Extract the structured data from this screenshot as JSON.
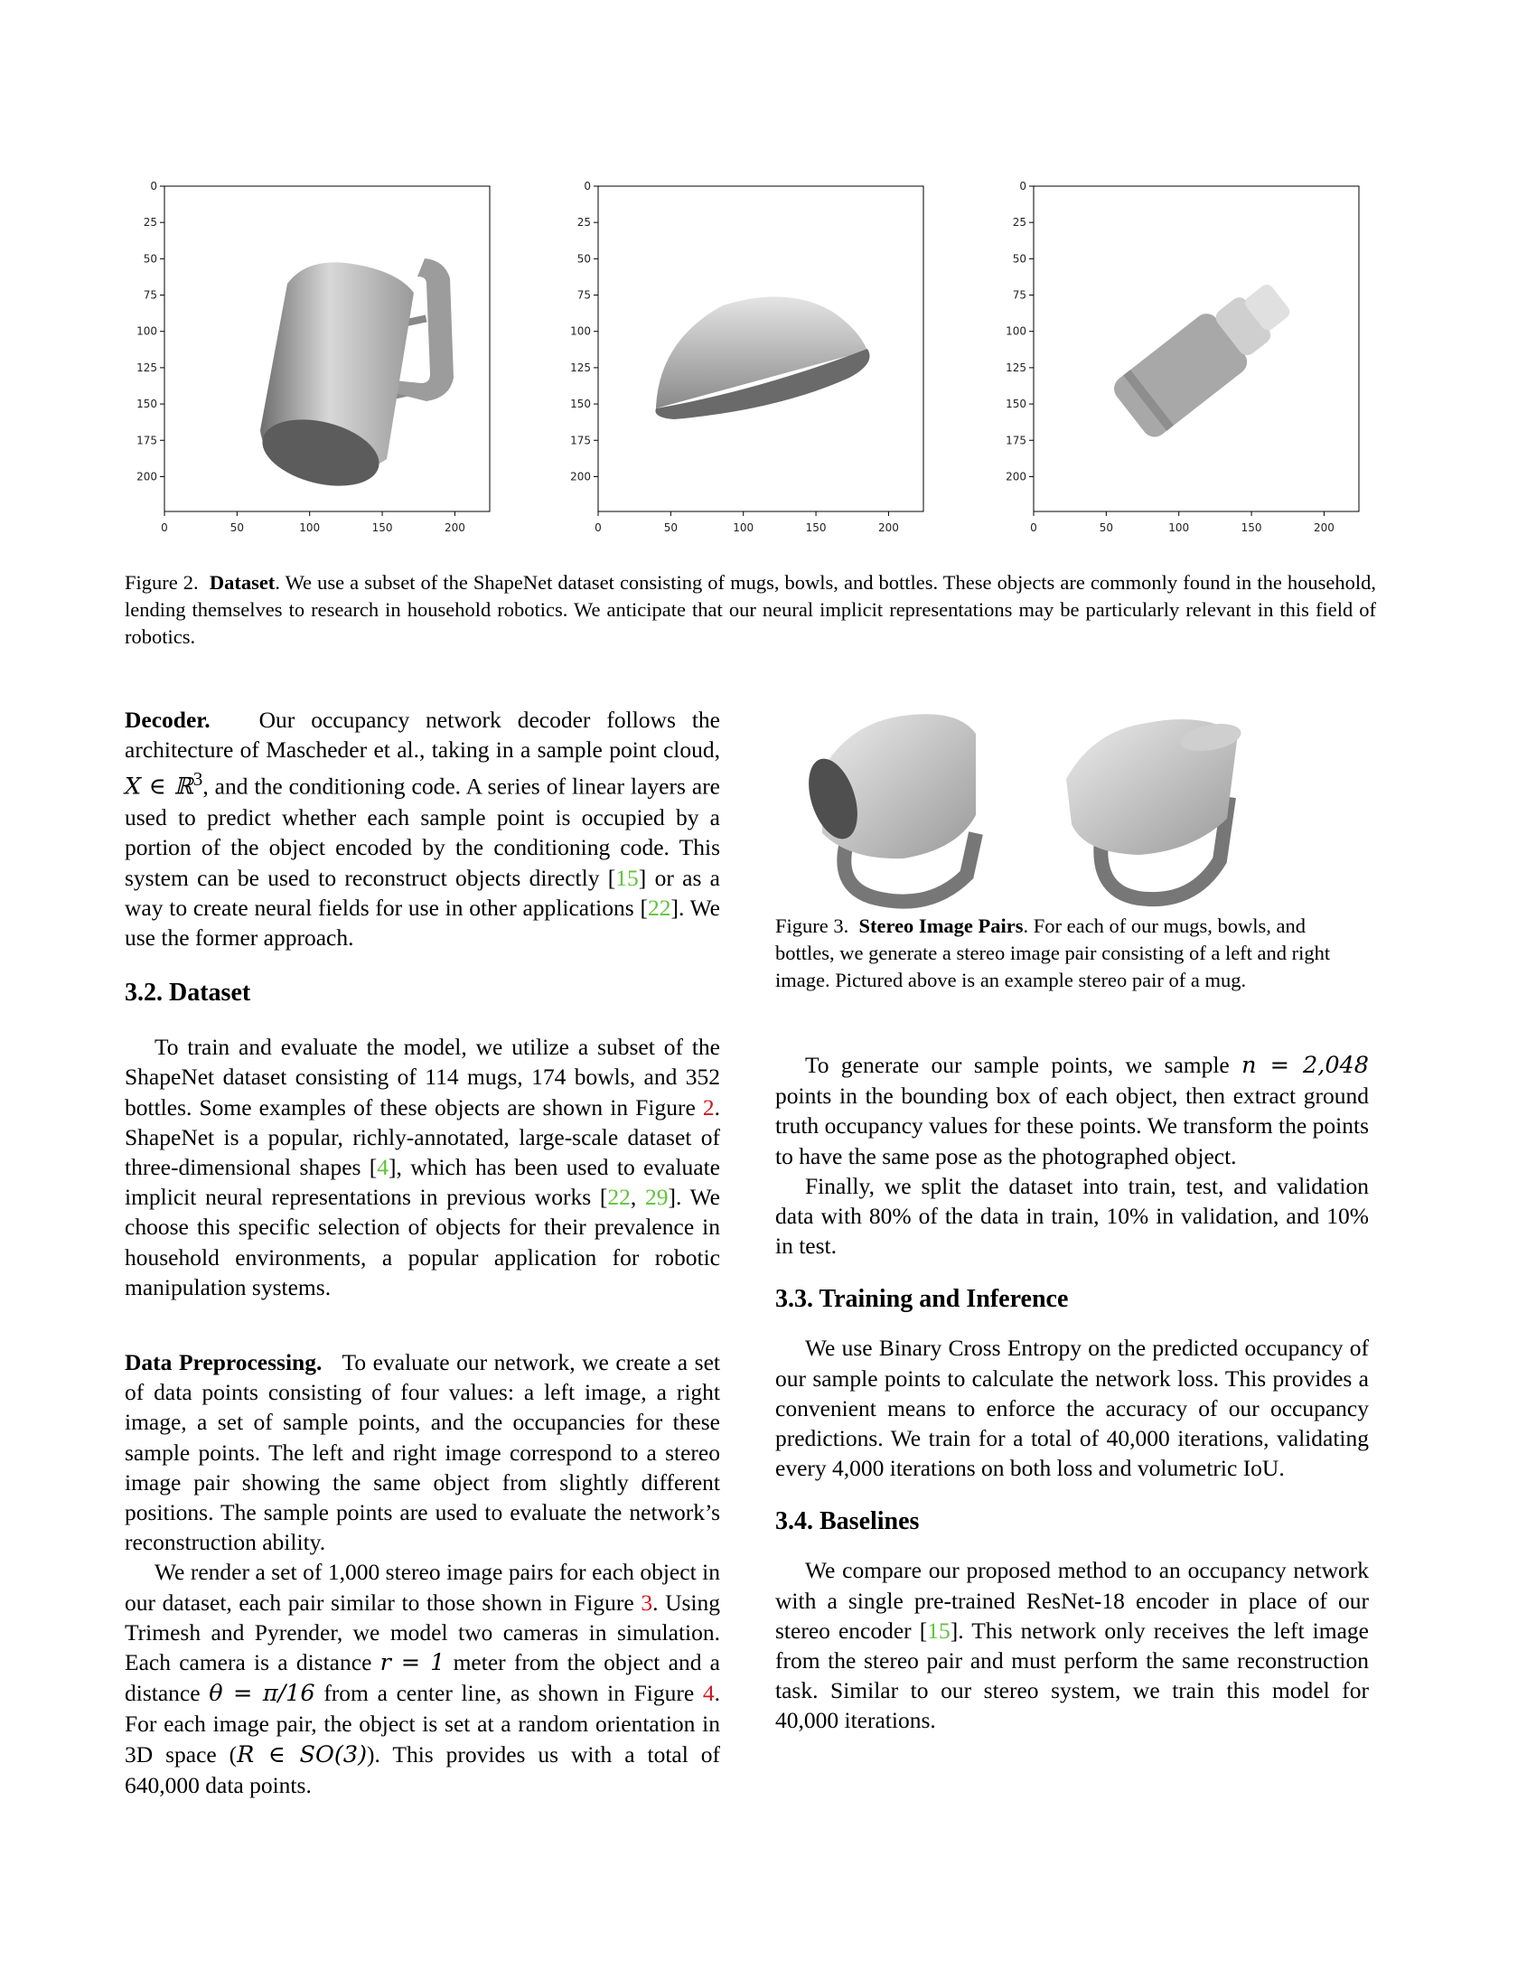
{
  "figure2": {
    "plots": [
      {
        "object": "mug",
        "y_ticks": [
          "0",
          "25",
          "50",
          "75",
          "100",
          "125",
          "150",
          "175",
          "200"
        ],
        "x_ticks": [
          "0",
          "50",
          "100",
          "150",
          "200"
        ]
      },
      {
        "object": "bowl",
        "y_ticks": [
          "0",
          "25",
          "50",
          "75",
          "100",
          "125",
          "150",
          "175",
          "200"
        ],
        "x_ticks": [
          "0",
          "50",
          "100",
          "150",
          "200"
        ]
      },
      {
        "object": "bottle",
        "y_ticks": [
          "0",
          "25",
          "50",
          "75",
          "100",
          "125",
          "150",
          "175",
          "200"
        ],
        "x_ticks": [
          "0",
          "50",
          "100",
          "150",
          "200"
        ]
      }
    ],
    "caption_label": "Figure 2.",
    "caption_bold": "Dataset",
    "caption_text": ". We use a subset of the ShapeNet dataset consisting of mugs, bowls, and bottles. These objects are commonly found in the household, lending themselves to research in household robotics. We anticipate that our neural implicit representations may be particularly relevant in this field of robotics."
  },
  "left": {
    "decoder": {
      "title": "Decoder.",
      "t1": "Our occupancy network decoder follows the architecture of Mascheder et al., taking in a sample point cloud,",
      "math1": "X ∈ ℝ",
      "sup": "3",
      "t2": ", and the conditioning code. A series of linear layers are used to predict whether each sample point is occupied by a portion of the object encoded by the conditioning code. This system can be used to reconstruct objects directly [",
      "c1": "15",
      "t3": "] or as a way to create neural fields for use in other applications [",
      "c2": "22",
      "t4": "]. We use the former approach."
    },
    "dataset": {
      "heading": "3.2. Dataset",
      "t1": "To train and evaluate the model, we utilize a subset of the ShapeNet dataset consisting of 114 mugs, 174 bowls, and 352 bottles. Some examples of these objects are shown in Figure ",
      "r1": "2",
      "t2": ". ShapeNet is a popular, richly-annotated, large-scale dataset of three-dimensional shapes [",
      "c1": "4",
      "t3": "], which has been used to evaluate implicit neural representations in previous works [",
      "c2": "22",
      "sep": ", ",
      "c3": "29",
      "t4": "]. We choose this specific selection of objects for their prevalence in household environments, a popular application for robotic manipulation systems."
    },
    "preproc": {
      "title": "Data Preprocessing.",
      "t1": "To evaluate our network, we create a set of data points consisting of four values: a left image, a right image, a set of sample points, and the occupancies for these sample points. The left and right image correspond to a stereo image pair showing the same object from slightly different positions. The sample points are used to evaluate the network’s reconstruction ability."
    },
    "render": {
      "t1": "We render a set of 1,000 stereo image pairs for each object in our dataset, each pair similar to those shown in Figure ",
      "r1": "3",
      "t2": ". Using Trimesh and Pyrender, we model two cameras in simulation. Each camera is a distance ",
      "m1": "r = 1",
      "t3": " meter from the object and a distance ",
      "m2": "θ = π/16",
      "t4": " from a center line, as shown in Figure ",
      "r2": "4",
      "t5": ". For each image pair, the object is set at a random orientation in 3D space (",
      "m3": "R ∈ SO(3)",
      "t6": "). This provides us with a total of 640,000 data points."
    }
  },
  "right": {
    "fig3": {
      "label": "Figure 3.",
      "bold": "Stereo Image Pairs",
      "text": ". For each of our mugs, bowls, and bottles, we generate a stereo image pair consisting of a left and right image. Pictured above is an example stereo pair of a mug."
    },
    "sample": {
      "t1": "To generate our sample points, we sample ",
      "m1": "n = 2,048",
      "t2": " points in the bounding box of each object, then extract ground truth occupancy values for these points. We transform the points to have the same pose as the photographed object."
    },
    "split": "Finally, we split the dataset into train, test, and validation data with 80% of the data in train, 10% in validation, and 10% in test.",
    "training": {
      "heading": "3.3. Training and Inference",
      "text": "We use Binary Cross Entropy on the predicted occupancy of our sample points to calculate the network loss. This provides a convenient means to enforce the accuracy of our occupancy predictions. We train for a total of 40,000 iterations, validating every 4,000 iterations on both loss and volumetric IoU."
    },
    "baselines": {
      "heading": "3.4. Baselines",
      "t1": "We compare our proposed method to an occupancy network with a single pre-trained ResNet-18 encoder in place of our stereo encoder [",
      "c1": "15",
      "t2": "]. This network only receives the left image from the stereo pair and must perform the same reconstruction task. Similar to our stereo system, we train this model for 40,000 iterations."
    }
  }
}
